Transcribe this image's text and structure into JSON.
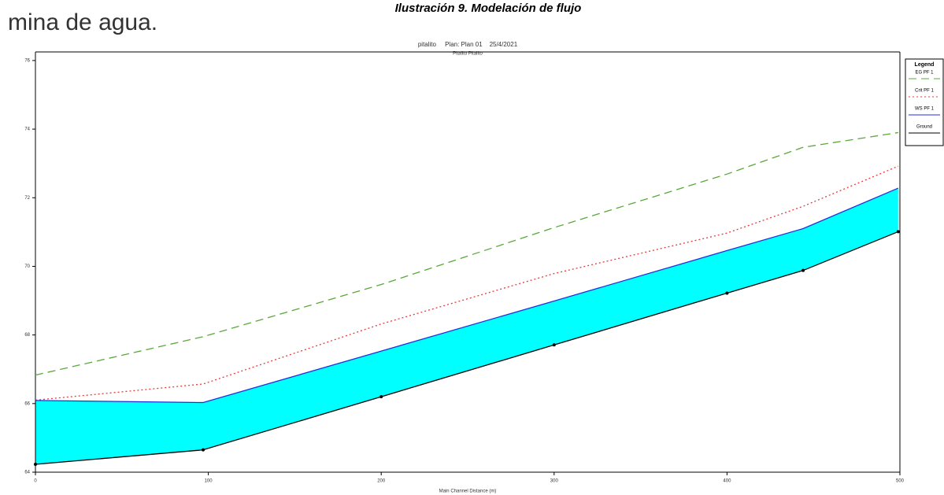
{
  "chart_data": {
    "type": "line",
    "caption": "Ilustración 9. Modelación de flujo",
    "cropped_text": "mina de agua.",
    "title": "pitalito     Plan: Plan 01    25/4/2021",
    "subtitle": "Pitalito Pitalito",
    "x_label": "Main Channel Distance (m)",
    "legend_title": "Legend",
    "x": [
      0,
      97,
      200,
      300,
      400,
      444,
      499
    ],
    "xlim": [
      0,
      500
    ],
    "xticks": [
      0,
      100,
      200,
      300,
      400,
      500
    ],
    "ylim": [
      64,
      76.25
    ],
    "yticks": [
      64,
      66,
      68,
      70,
      72,
      74,
      76
    ],
    "fill_color": "#00ffff",
    "series": [
      {
        "name": "EG  PF 1",
        "color": "#5aa83a",
        "dash": "10,6",
        "values": [
          66.83,
          67.95,
          69.47,
          71.13,
          72.69,
          73.47,
          73.9
        ]
      },
      {
        "name": "Crit  PF 1",
        "color": "#e83a3a",
        "dash": "2,3",
        "values": [
          66.1,
          66.57,
          68.32,
          69.79,
          70.97,
          71.75,
          72.92
        ]
      },
      {
        "name": "WS  PF 1",
        "color": "#2030e0",
        "dash": "",
        "values": [
          66.09,
          66.03,
          67.53,
          68.99,
          70.46,
          71.1,
          72.28
        ]
      },
      {
        "name": "Ground",
        "color": "#000000",
        "dash": "",
        "values": [
          64.23,
          64.65,
          66.2,
          67.71,
          69.22,
          69.88,
          71.01
        ]
      }
    ]
  }
}
